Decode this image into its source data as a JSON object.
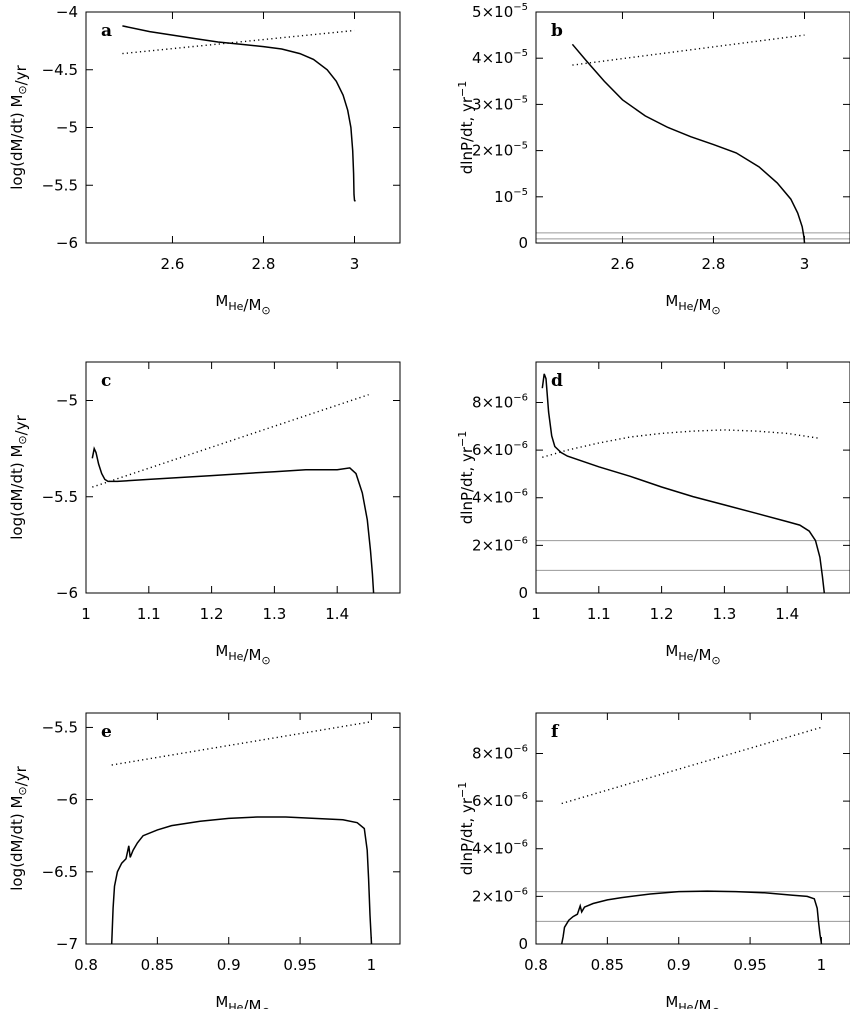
{
  "chart_data": [
    {
      "panel": "a",
      "type": "line",
      "xlabel": "M_He/M_⊙",
      "ylabel": "log(dM/dt)  M_⊙/yr",
      "xlim": [
        2.41,
        3.1
      ],
      "ylim": [
        -6,
        -4
      ],
      "xticks": [
        {
          "v": 2.6,
          "label": "2.6"
        },
        {
          "v": 2.8,
          "label": "2.8"
        },
        {
          "v": 3.0,
          "label": "3"
        }
      ],
      "yticks": [
        {
          "v": -4,
          "label": "−4"
        },
        {
          "v": -4.5,
          "label": "−4.5"
        },
        {
          "v": -5,
          "label": "−5"
        },
        {
          "v": -5.5,
          "label": "−5.5"
        },
        {
          "v": -6,
          "label": "−6"
        }
      ],
      "series": [
        {
          "style": "solid",
          "x": [
            2.49,
            2.55,
            2.6,
            2.65,
            2.7,
            2.75,
            2.8,
            2.84,
            2.88,
            2.91,
            2.94,
            2.96,
            2.975,
            2.985,
            2.992,
            2.996,
            2.998,
            2.999,
            3.0,
            3.002
          ],
          "y": [
            -4.12,
            -4.17,
            -4.2,
            -4.23,
            -4.26,
            -4.28,
            -4.3,
            -4.32,
            -4.36,
            -4.41,
            -4.5,
            -4.6,
            -4.72,
            -4.85,
            -5.0,
            -5.2,
            -5.4,
            -5.58,
            -5.63,
            -5.64
          ]
        },
        {
          "style": "dotted",
          "x": [
            2.49,
            3.0
          ],
          "y": [
            -4.36,
            -4.16
          ]
        }
      ],
      "hlines": []
    },
    {
      "panel": "b",
      "type": "line",
      "xlabel": "M_He/M_⊙",
      "ylabel": "dlnP/dt,  yr^−1",
      "xlim": [
        2.41,
        3.1
      ],
      "ylim": [
        0,
        5e-05
      ],
      "xticks": [
        {
          "v": 2.6,
          "label": "2.6"
        },
        {
          "v": 2.8,
          "label": "2.8"
        },
        {
          "v": 3.0,
          "label": "3"
        }
      ],
      "yticks": [
        {
          "v": 0,
          "label": "0"
        },
        {
          "v": 1e-05,
          "label": "10",
          "exp": "−5"
        },
        {
          "v": 2e-05,
          "label": "2×10",
          "exp": "−5"
        },
        {
          "v": 3e-05,
          "label": "3×10",
          "exp": "−5"
        },
        {
          "v": 4e-05,
          "label": "4×10",
          "exp": "−5"
        },
        {
          "v": 5e-05,
          "label": "5×10",
          "exp": "−5"
        }
      ],
      "series": [
        {
          "style": "solid",
          "x": [
            2.49,
            2.52,
            2.56,
            2.6,
            2.65,
            2.7,
            2.75,
            2.8,
            2.85,
            2.9,
            2.94,
            2.97,
            2.985,
            2.995,
            2.999,
            3.0
          ],
          "y": [
            4.3e-05,
            3.95e-05,
            3.5e-05,
            3.1e-05,
            2.75e-05,
            2.5e-05,
            2.3e-05,
            2.13e-05,
            1.95e-05,
            1.65e-05,
            1.3e-05,
            9.5e-06,
            6.5e-06,
            3.5e-06,
            1.2e-06,
            0.0
          ]
        },
        {
          "style": "dotted",
          "x": [
            2.49,
            3.0
          ],
          "y": [
            3.85e-05,
            4.5e-05
          ]
        }
      ],
      "hlines": [
        2.2e-06,
        9e-07
      ]
    },
    {
      "panel": "c",
      "type": "line",
      "xlabel": "M_He/M_⊙",
      "ylabel": "log(dM/dt)  M_⊙/yr",
      "xlim": [
        1.0,
        1.5
      ],
      "ylim": [
        -6,
        -4.8
      ],
      "xticks": [
        {
          "v": 1.0,
          "label": "1"
        },
        {
          "v": 1.1,
          "label": "1.1"
        },
        {
          "v": 1.2,
          "label": "1.2"
        },
        {
          "v": 1.3,
          "label": "1.3"
        },
        {
          "v": 1.4,
          "label": "1.4"
        }
      ],
      "yticks": [
        {
          "v": -5,
          "label": "−5"
        },
        {
          "v": -5.5,
          "label": "−5.5"
        },
        {
          "v": -6,
          "label": "−6"
        }
      ],
      "series": [
        {
          "style": "solid",
          "x": [
            1.01,
            1.013,
            1.016,
            1.02,
            1.025,
            1.03,
            1.035,
            1.04,
            1.05,
            1.1,
            1.15,
            1.2,
            1.25,
            1.3,
            1.35,
            1.4,
            1.42,
            1.43,
            1.44,
            1.448,
            1.453,
            1.456,
            1.458
          ],
          "y": [
            -5.3,
            -5.25,
            -5.27,
            -5.33,
            -5.38,
            -5.41,
            -5.42,
            -5.42,
            -5.42,
            -5.41,
            -5.4,
            -5.39,
            -5.38,
            -5.37,
            -5.36,
            -5.36,
            -5.35,
            -5.38,
            -5.48,
            -5.62,
            -5.78,
            -5.9,
            -6.0
          ]
        },
        {
          "style": "dotted",
          "x": [
            1.01,
            1.45
          ],
          "y": [
            -5.45,
            -4.97
          ]
        }
      ],
      "hlines": []
    },
    {
      "panel": "d",
      "type": "line",
      "xlabel": "M_He/M_⊙",
      "ylabel": "dlnP/dt,  yr^−1",
      "xlim": [
        1.0,
        1.5
      ],
      "ylim": [
        0,
        9.7e-06
      ],
      "xticks": [
        {
          "v": 1.0,
          "label": "1"
        },
        {
          "v": 1.1,
          "label": "1.1"
        },
        {
          "v": 1.2,
          "label": "1.2"
        },
        {
          "v": 1.3,
          "label": "1.3"
        },
        {
          "v": 1.4,
          "label": "1.4"
        }
      ],
      "yticks": [
        {
          "v": 0,
          "label": "0"
        },
        {
          "v": 2e-06,
          "label": "2×10",
          "exp": "−6"
        },
        {
          "v": 4e-06,
          "label": "4×10",
          "exp": "−6"
        },
        {
          "v": 6e-06,
          "label": "6×10",
          "exp": "−6"
        },
        {
          "v": 8e-06,
          "label": "8×10",
          "exp": "−6"
        }
      ],
      "series": [
        {
          "style": "solid",
          "x": [
            1.01,
            1.013,
            1.016,
            1.02,
            1.025,
            1.03,
            1.04,
            1.05,
            1.1,
            1.15,
            1.2,
            1.25,
            1.3,
            1.35,
            1.4,
            1.42,
            1.435,
            1.445,
            1.452,
            1.456,
            1.459
          ],
          "y": [
            8.6e-06,
            9.2e-06,
            9e-06,
            7.6e-06,
            6.6e-06,
            6.15e-06,
            5.9e-06,
            5.75e-06,
            5.3e-06,
            4.9e-06,
            4.45e-06,
            4.05e-06,
            3.7e-06,
            3.35e-06,
            3e-06,
            2.85e-06,
            2.6e-06,
            2.2e-06,
            1.5e-06,
            7e-07,
            0.0
          ]
        },
        {
          "style": "dotted",
          "x": [
            1.01,
            1.05,
            1.1,
            1.15,
            1.2,
            1.25,
            1.3,
            1.35,
            1.4,
            1.45
          ],
          "y": [
            5.7e-06,
            6e-06,
            6.3e-06,
            6.55e-06,
            6.7e-06,
            6.8e-06,
            6.85e-06,
            6.8e-06,
            6.7e-06,
            6.5e-06
          ]
        }
      ],
      "hlines": [
        2.2e-06,
        9.5e-07
      ]
    },
    {
      "panel": "e",
      "type": "line",
      "xlabel": "M_He/M_⊙",
      "ylabel": "log(dM/dt)  M_⊙/yr",
      "xlim": [
        0.8,
        1.02
      ],
      "ylim": [
        -7,
        -5.4
      ],
      "xticks": [
        {
          "v": 0.8,
          "label": "0.8"
        },
        {
          "v": 0.85,
          "label": "0.85"
        },
        {
          "v": 0.9,
          "label": "0.9"
        },
        {
          "v": 0.95,
          "label": "0.95"
        },
        {
          "v": 1.0,
          "label": "1"
        }
      ],
      "yticks": [
        {
          "v": -5.5,
          "label": "−5.5"
        },
        {
          "v": -6,
          "label": "−6"
        },
        {
          "v": -6.5,
          "label": "−6.5"
        },
        {
          "v": -7,
          "label": "−7"
        }
      ],
      "series": [
        {
          "style": "solid",
          "x": [
            0.818,
            0.819,
            0.82,
            0.822,
            0.825,
            0.828,
            0.83,
            0.831,
            0.833,
            0.836,
            0.84,
            0.85,
            0.86,
            0.88,
            0.9,
            0.92,
            0.94,
            0.96,
            0.98,
            0.99,
            0.995,
            0.997,
            0.998,
            0.999,
            1.0
          ],
          "y": [
            -7.0,
            -6.75,
            -6.6,
            -6.5,
            -6.44,
            -6.41,
            -6.32,
            -6.4,
            -6.35,
            -6.3,
            -6.25,
            -6.21,
            -6.18,
            -6.15,
            -6.13,
            -6.12,
            -6.12,
            -6.13,
            -6.14,
            -6.16,
            -6.2,
            -6.35,
            -6.55,
            -6.8,
            -7.0
          ]
        },
        {
          "style": "dotted",
          "x": [
            0.818,
            1.0
          ],
          "y": [
            -5.76,
            -5.46
          ]
        }
      ],
      "hlines": []
    },
    {
      "panel": "f",
      "type": "line",
      "xlabel": "M_He/M_⊙",
      "ylabel": "dlnP/dt,  yr^−1",
      "xlim": [
        0.8,
        1.02
      ],
      "ylim": [
        0,
        9.7e-06
      ],
      "xticks": [
        {
          "v": 0.8,
          "label": "0.8"
        },
        {
          "v": 0.85,
          "label": "0.85"
        },
        {
          "v": 0.9,
          "label": "0.9"
        },
        {
          "v": 0.95,
          "label": "0.95"
        },
        {
          "v": 1.0,
          "label": "1"
        }
      ],
      "yticks": [
        {
          "v": 0,
          "label": "0"
        },
        {
          "v": 2e-06,
          "label": "2×10",
          "exp": "−6"
        },
        {
          "v": 4e-06,
          "label": "4×10",
          "exp": "−6"
        },
        {
          "v": 6e-06,
          "label": "6×10",
          "exp": "−6"
        },
        {
          "v": 8e-06,
          "label": "8×10",
          "exp": "−6"
        }
      ],
      "series": [
        {
          "style": "solid",
          "x": [
            0.818,
            0.819,
            0.82,
            0.823,
            0.826,
            0.829,
            0.831,
            0.832,
            0.834,
            0.84,
            0.85,
            0.86,
            0.88,
            0.9,
            0.92,
            0.94,
            0.96,
            0.98,
            0.99,
            0.995,
            0.997,
            0.998,
            0.999,
            1.0
          ],
          "y": [
            0.0,
            3e-07,
            7e-07,
            1e-06,
            1.15e-06,
            1.25e-06,
            1.6e-06,
            1.35e-06,
            1.55e-06,
            1.7e-06,
            1.85e-06,
            1.95e-06,
            2.1e-06,
            2.2e-06,
            2.22e-06,
            2.2e-06,
            2.15e-06,
            2.05e-06,
            2e-06,
            1.9e-06,
            1.5e-06,
            9e-07,
            4e-07,
            0.0
          ]
        },
        {
          "style": "dotted",
          "x": [
            0.818,
            1.0
          ],
          "y": [
            5.9e-06,
            9.1e-06
          ]
        }
      ],
      "hlines": [
        2.2e-06,
        9.5e-07
      ]
    }
  ]
}
